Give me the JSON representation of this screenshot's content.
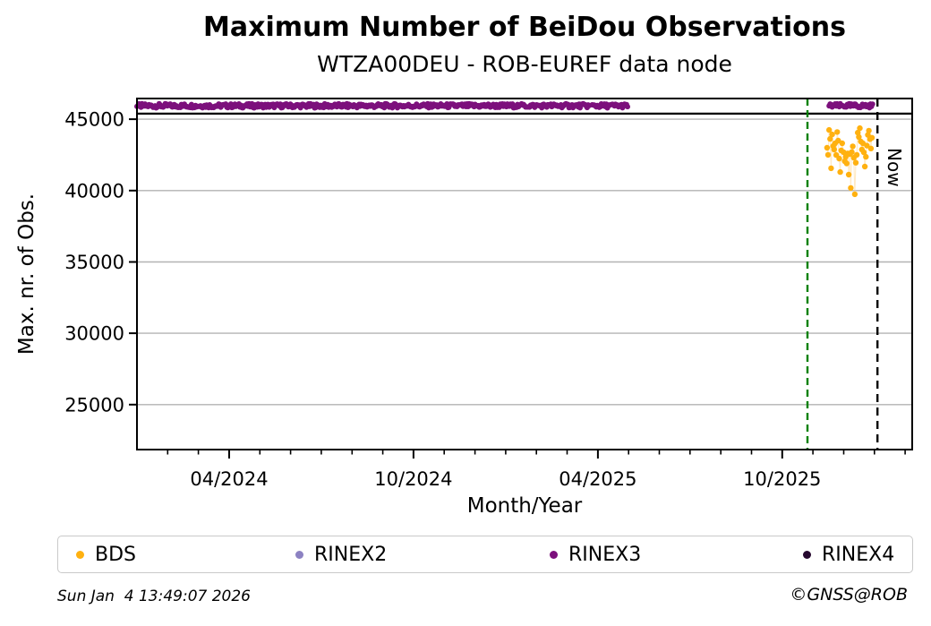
{
  "title": "Maximum Number of BeiDou Observations",
  "subtitle": "WTZA00DEU - ROB-EUREF data node",
  "footer": {
    "timestamp": "Sun Jan  4 13:49:07 2026",
    "credit": "©GNSS@ROB"
  },
  "legend": {
    "items": [
      {
        "label": "BDS",
        "color": "#ffb110"
      },
      {
        "label": "RINEX2",
        "color": "#8c82c2"
      },
      {
        "label": "RINEX3",
        "color": "#7c107c"
      },
      {
        "label": "RINEX4",
        "color": "#26082f"
      }
    ]
  },
  "chart_data": {
    "type": "scatter",
    "title": "Maximum Number of BeiDou Observations",
    "subtitle": "WTZA00DEU - ROB-EUREF data node",
    "xlabel": "Month/Year",
    "ylabel": "Max. nr. of Obs.",
    "xlim": [
      "2024-01-01",
      "2026-02-08"
    ],
    "ylim": [
      21850,
      46450
    ],
    "yticks": [
      45000,
      40000,
      35000,
      30000,
      25000
    ],
    "xticks": [
      {
        "date": "2024-04-01",
        "label": "04/2024"
      },
      {
        "date": "2024-10-01",
        "label": "10/2024"
      },
      {
        "date": "2025-04-01",
        "label": "04/2025"
      },
      {
        "date": "2025-10-01",
        "label": "10/2025"
      }
    ],
    "minor_xticks": "monthly",
    "grid": "horizontal-only",
    "grid_color": "#b3b3b3",
    "legend_position": "below",
    "reference_line": {
      "value": 45390,
      "color": "#000000",
      "style": "solid"
    },
    "vlines": [
      {
        "name": "green-dashed-line",
        "date": "2025-10-26",
        "color": "#008000",
        "style": "dashed"
      },
      {
        "name": "now-line",
        "date": "2026-01-04",
        "color": "#000000",
        "style": "dashed",
        "label": "Now"
      }
    ],
    "series": [
      {
        "name": "RINEX3",
        "color": "#7c107c",
        "line_color": "rgba(221,160,221,0.55)",
        "marker_px": 3,
        "pattern": "daily",
        "value_mean": 45940,
        "value_spread": 150,
        "segments": [
          {
            "start": "2024-01-01",
            "end": "2025-04-30"
          },
          {
            "start": "2025-11-17",
            "end": "2025-12-30"
          }
        ],
        "gaps": [
          [
            "2025-01-14",
            "2025-01-16"
          ],
          [
            "2025-01-30",
            "2025-02-01"
          ],
          [
            "2025-02-13",
            "2025-02-15"
          ],
          [
            "2025-03-23",
            "2025-03-25"
          ]
        ]
      },
      {
        "name": "BDS",
        "color": "#ffb110",
        "line_color": "rgba(255,213,140,0.5)",
        "marker_px": 3.2,
        "pattern": "points",
        "points": [
          [
            "2025-11-15",
            43000
          ],
          [
            "2025-11-16",
            42500
          ],
          [
            "2025-11-17",
            44250
          ],
          [
            "2025-11-18",
            43620
          ],
          [
            "2025-11-19",
            41560
          ],
          [
            "2025-11-20",
            43935
          ],
          [
            "2025-11-21",
            43120
          ],
          [
            "2025-11-22",
            42870
          ],
          [
            "2025-11-23",
            43310
          ],
          [
            "2025-11-24",
            42490
          ],
          [
            "2025-11-25",
            44100
          ],
          [
            "2025-11-26",
            43500
          ],
          [
            "2025-11-27",
            42240
          ],
          [
            "2025-11-28",
            41300
          ],
          [
            "2025-11-29",
            42810
          ],
          [
            "2025-11-30",
            43310
          ],
          [
            "2025-12-01",
            42680
          ],
          [
            "2025-12-02",
            42055
          ],
          [
            "2025-12-03",
            42365
          ],
          [
            "2025-12-04",
            41900
          ],
          [
            "2025-12-05",
            42600
          ],
          [
            "2025-12-06",
            41115
          ],
          [
            "2025-12-07",
            42550
          ],
          [
            "2025-12-08",
            40180
          ],
          [
            "2025-12-09",
            42700
          ],
          [
            "2025-12-10",
            43100
          ],
          [
            "2025-12-11",
            42300
          ],
          [
            "2025-12-12",
            39740
          ],
          [
            "2025-12-13",
            41950
          ],
          [
            "2025-12-14",
            42500
          ],
          [
            "2025-12-15",
            44060
          ],
          [
            "2025-12-16",
            43750
          ],
          [
            "2025-12-17",
            44375
          ],
          [
            "2025-12-18",
            43440
          ],
          [
            "2025-12-19",
            42870
          ],
          [
            "2025-12-20",
            43310
          ],
          [
            "2025-12-21",
            42680
          ],
          [
            "2025-12-22",
            41680
          ],
          [
            "2025-12-23",
            42365
          ],
          [
            "2025-12-24",
            43150
          ],
          [
            "2025-12-25",
            43900
          ],
          [
            "2025-12-26",
            44200
          ],
          [
            "2025-12-27",
            43600
          ],
          [
            "2025-12-28",
            42950
          ],
          [
            "2025-12-29",
            43700
          ]
        ]
      },
      {
        "name": "RINEX2",
        "color": "#8c82c2",
        "pattern": "points",
        "points": []
      },
      {
        "name": "RINEX4",
        "color": "#26082f",
        "pattern": "points",
        "points": []
      }
    ]
  }
}
